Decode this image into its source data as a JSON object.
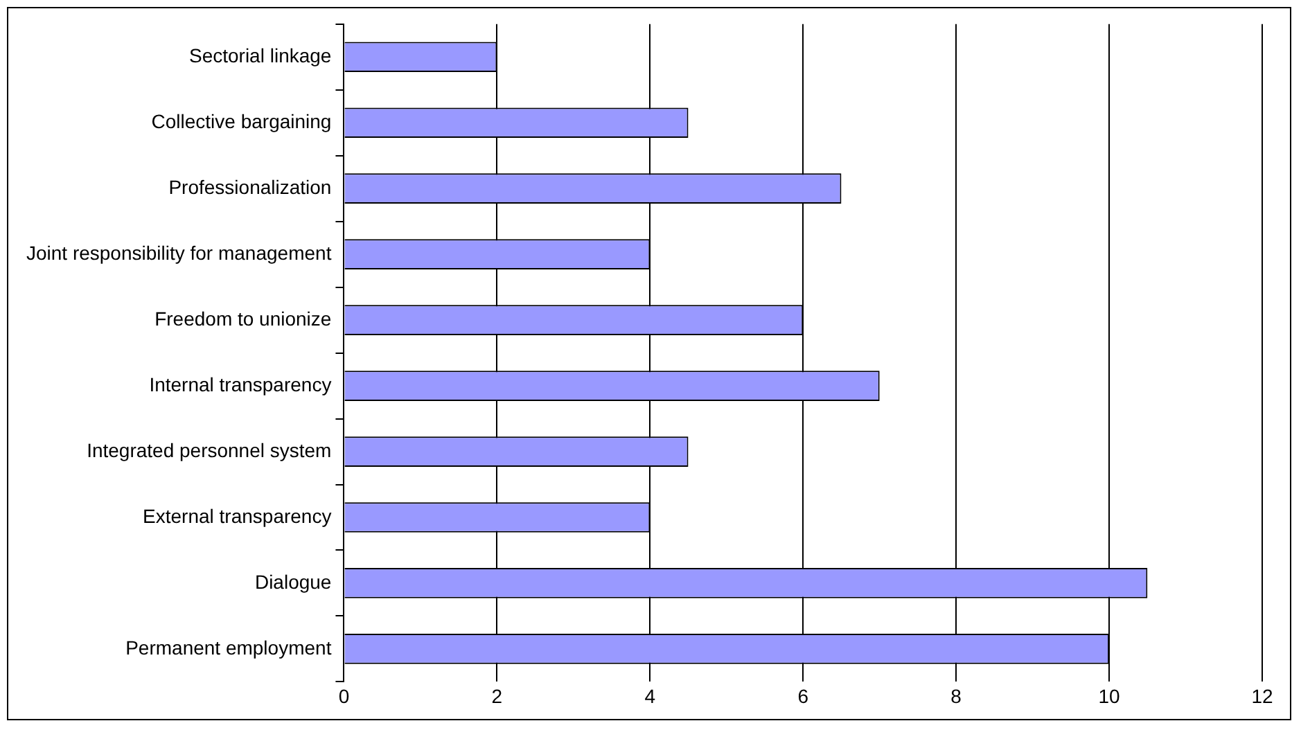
{
  "chart_data": {
    "type": "bar",
    "orientation": "horizontal",
    "categories": [
      "Sectorial linkage",
      "Collective bargaining",
      "Professionalization",
      "Joint responsibility for management",
      "Freedom to unionize",
      "Internal transparency",
      "Integrated personnel system",
      "External transparency",
      "Dialogue",
      "Permanent employment"
    ],
    "values": [
      2,
      4.5,
      6.5,
      4,
      6,
      7,
      4.5,
      4,
      10.5,
      10
    ],
    "color": "#9999ff",
    "xlim": [
      0,
      12
    ],
    "xticks": [
      0,
      2,
      4,
      6,
      8,
      10,
      12
    ],
    "grid": "x",
    "legend": false
  }
}
